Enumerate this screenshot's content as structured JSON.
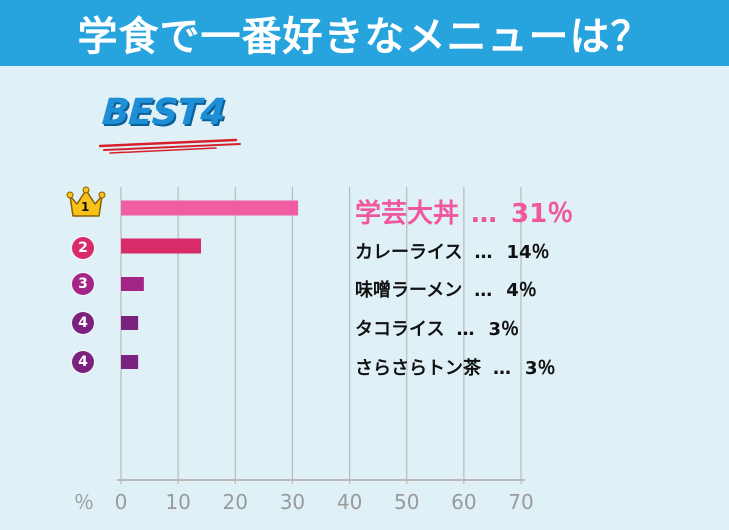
{
  "header": {
    "title": "学食で一番好きなメニューは？"
  },
  "badge": {
    "text": "BEST4"
  },
  "rank_badges": [
    "1",
    "2",
    "3",
    "4",
    "4"
  ],
  "colors": {
    "header_bg": "#27a3de",
    "background": "#dff1f7",
    "badge_blue": "#1e8fd6",
    "underline_red": "#d7202b",
    "crown_gold": "#f7c21a",
    "bars": [
      "#f05da3",
      "#d72b6a",
      "#a32586",
      "#7a227e",
      "#7a227e"
    ]
  },
  "chart_data": {
    "type": "bar",
    "orientation": "horizontal",
    "title": "学食で一番好きなメニューは？",
    "categories": [
      "学芸大丼",
      "カレーライス",
      "味噌ラーメン",
      "タコライス",
      "さらさらトン茶"
    ],
    "values": [
      31,
      14,
      4,
      3,
      3
    ],
    "value_labels": [
      "31％",
      "14％",
      "4％",
      "3％",
      "3％"
    ],
    "separator": "…",
    "xlabel": "％",
    "xlim": [
      0,
      70
    ],
    "xticks": [
      "0",
      "10",
      "20",
      "30",
      "40",
      "50",
      "60",
      "70"
    ],
    "grid": true
  }
}
